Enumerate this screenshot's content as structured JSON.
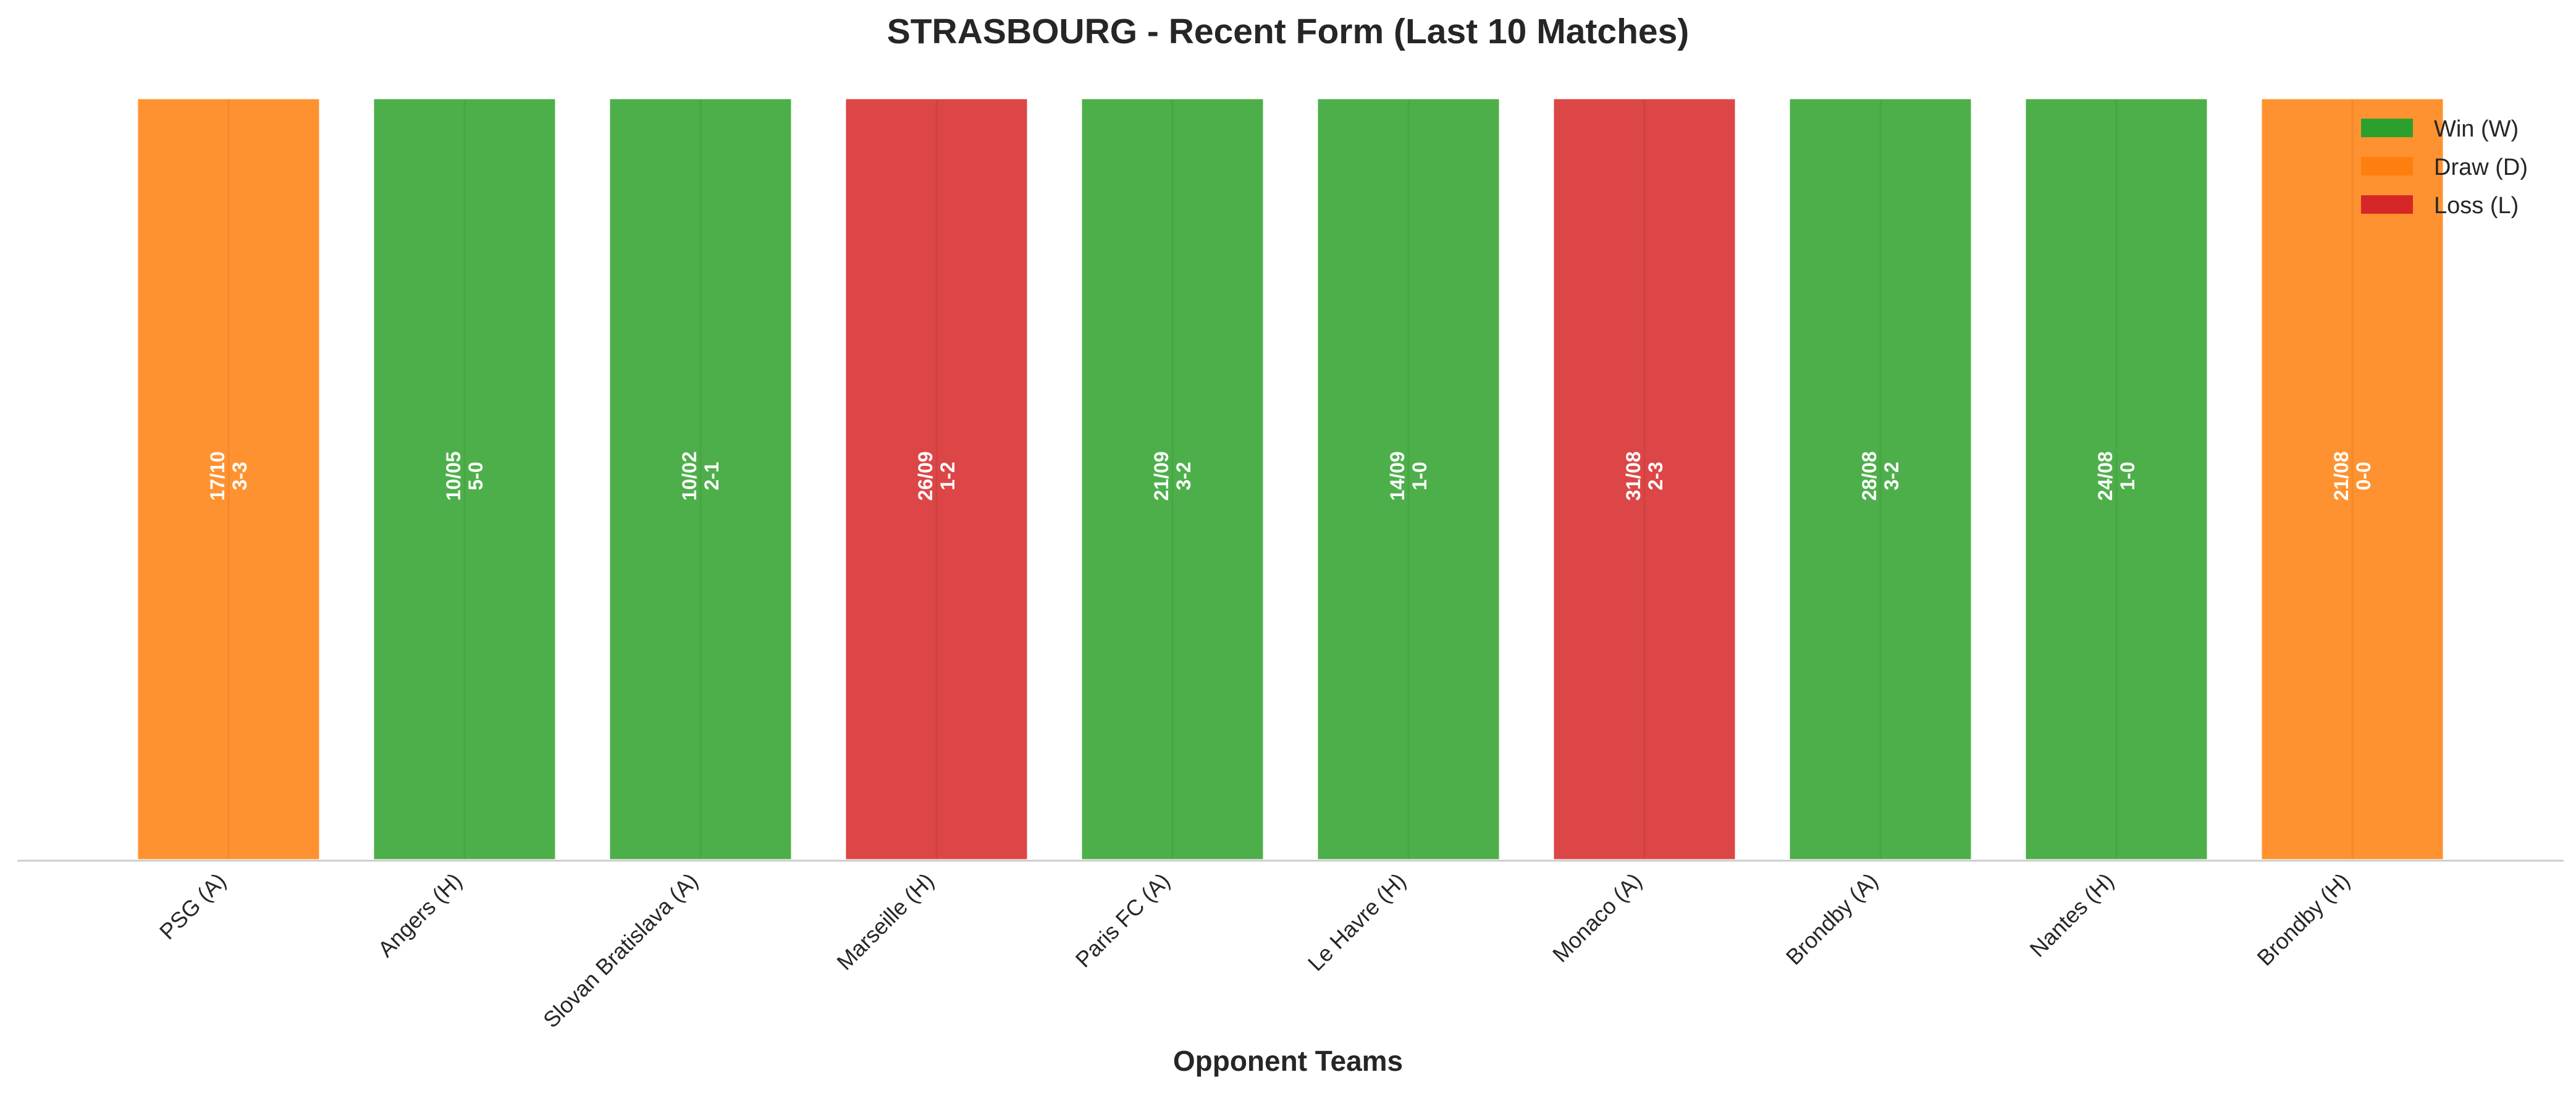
{
  "chart_data": {
    "type": "bar",
    "title": "STRASBOURG - Recent Form (Last 10 Matches)",
    "xlabel": "Opponent Teams",
    "ylabel": "",
    "grid": false,
    "legend_position": "top-right",
    "categories": [
      "PSG (A)",
      "Angers (H)",
      "Slovan Bratislava (A)",
      "Marseille (H)",
      "Paris FC (A)",
      "Le Havre (H)",
      "Monaco (A)",
      "Brondby (A)",
      "Nantes (H)",
      "Brondby (H)"
    ],
    "values": [
      1,
      1,
      1,
      1,
      1,
      1,
      1,
      1,
      1,
      1
    ],
    "ylim": [
      0,
      1
    ],
    "results": [
      "D",
      "W",
      "W",
      "L",
      "W",
      "W",
      "L",
      "W",
      "W",
      "D"
    ],
    "dates": [
      "17/10",
      "10/05",
      "10/02",
      "26/09",
      "21/09",
      "14/09",
      "31/08",
      "28/08",
      "24/08",
      "21/08"
    ],
    "scores": [
      "3-3",
      "5-0",
      "2-1",
      "1-2",
      "3-2",
      "1-0",
      "2-3",
      "3-2",
      "1-0",
      "0-0"
    ],
    "legend": [
      {
        "key": "W",
        "label": "Win (W)",
        "color": "#2ca02c"
      },
      {
        "key": "D",
        "label": "Draw (D)",
        "color": "#ff7f0e"
      },
      {
        "key": "L",
        "label": "Loss (L)",
        "color": "#d62728"
      }
    ]
  }
}
